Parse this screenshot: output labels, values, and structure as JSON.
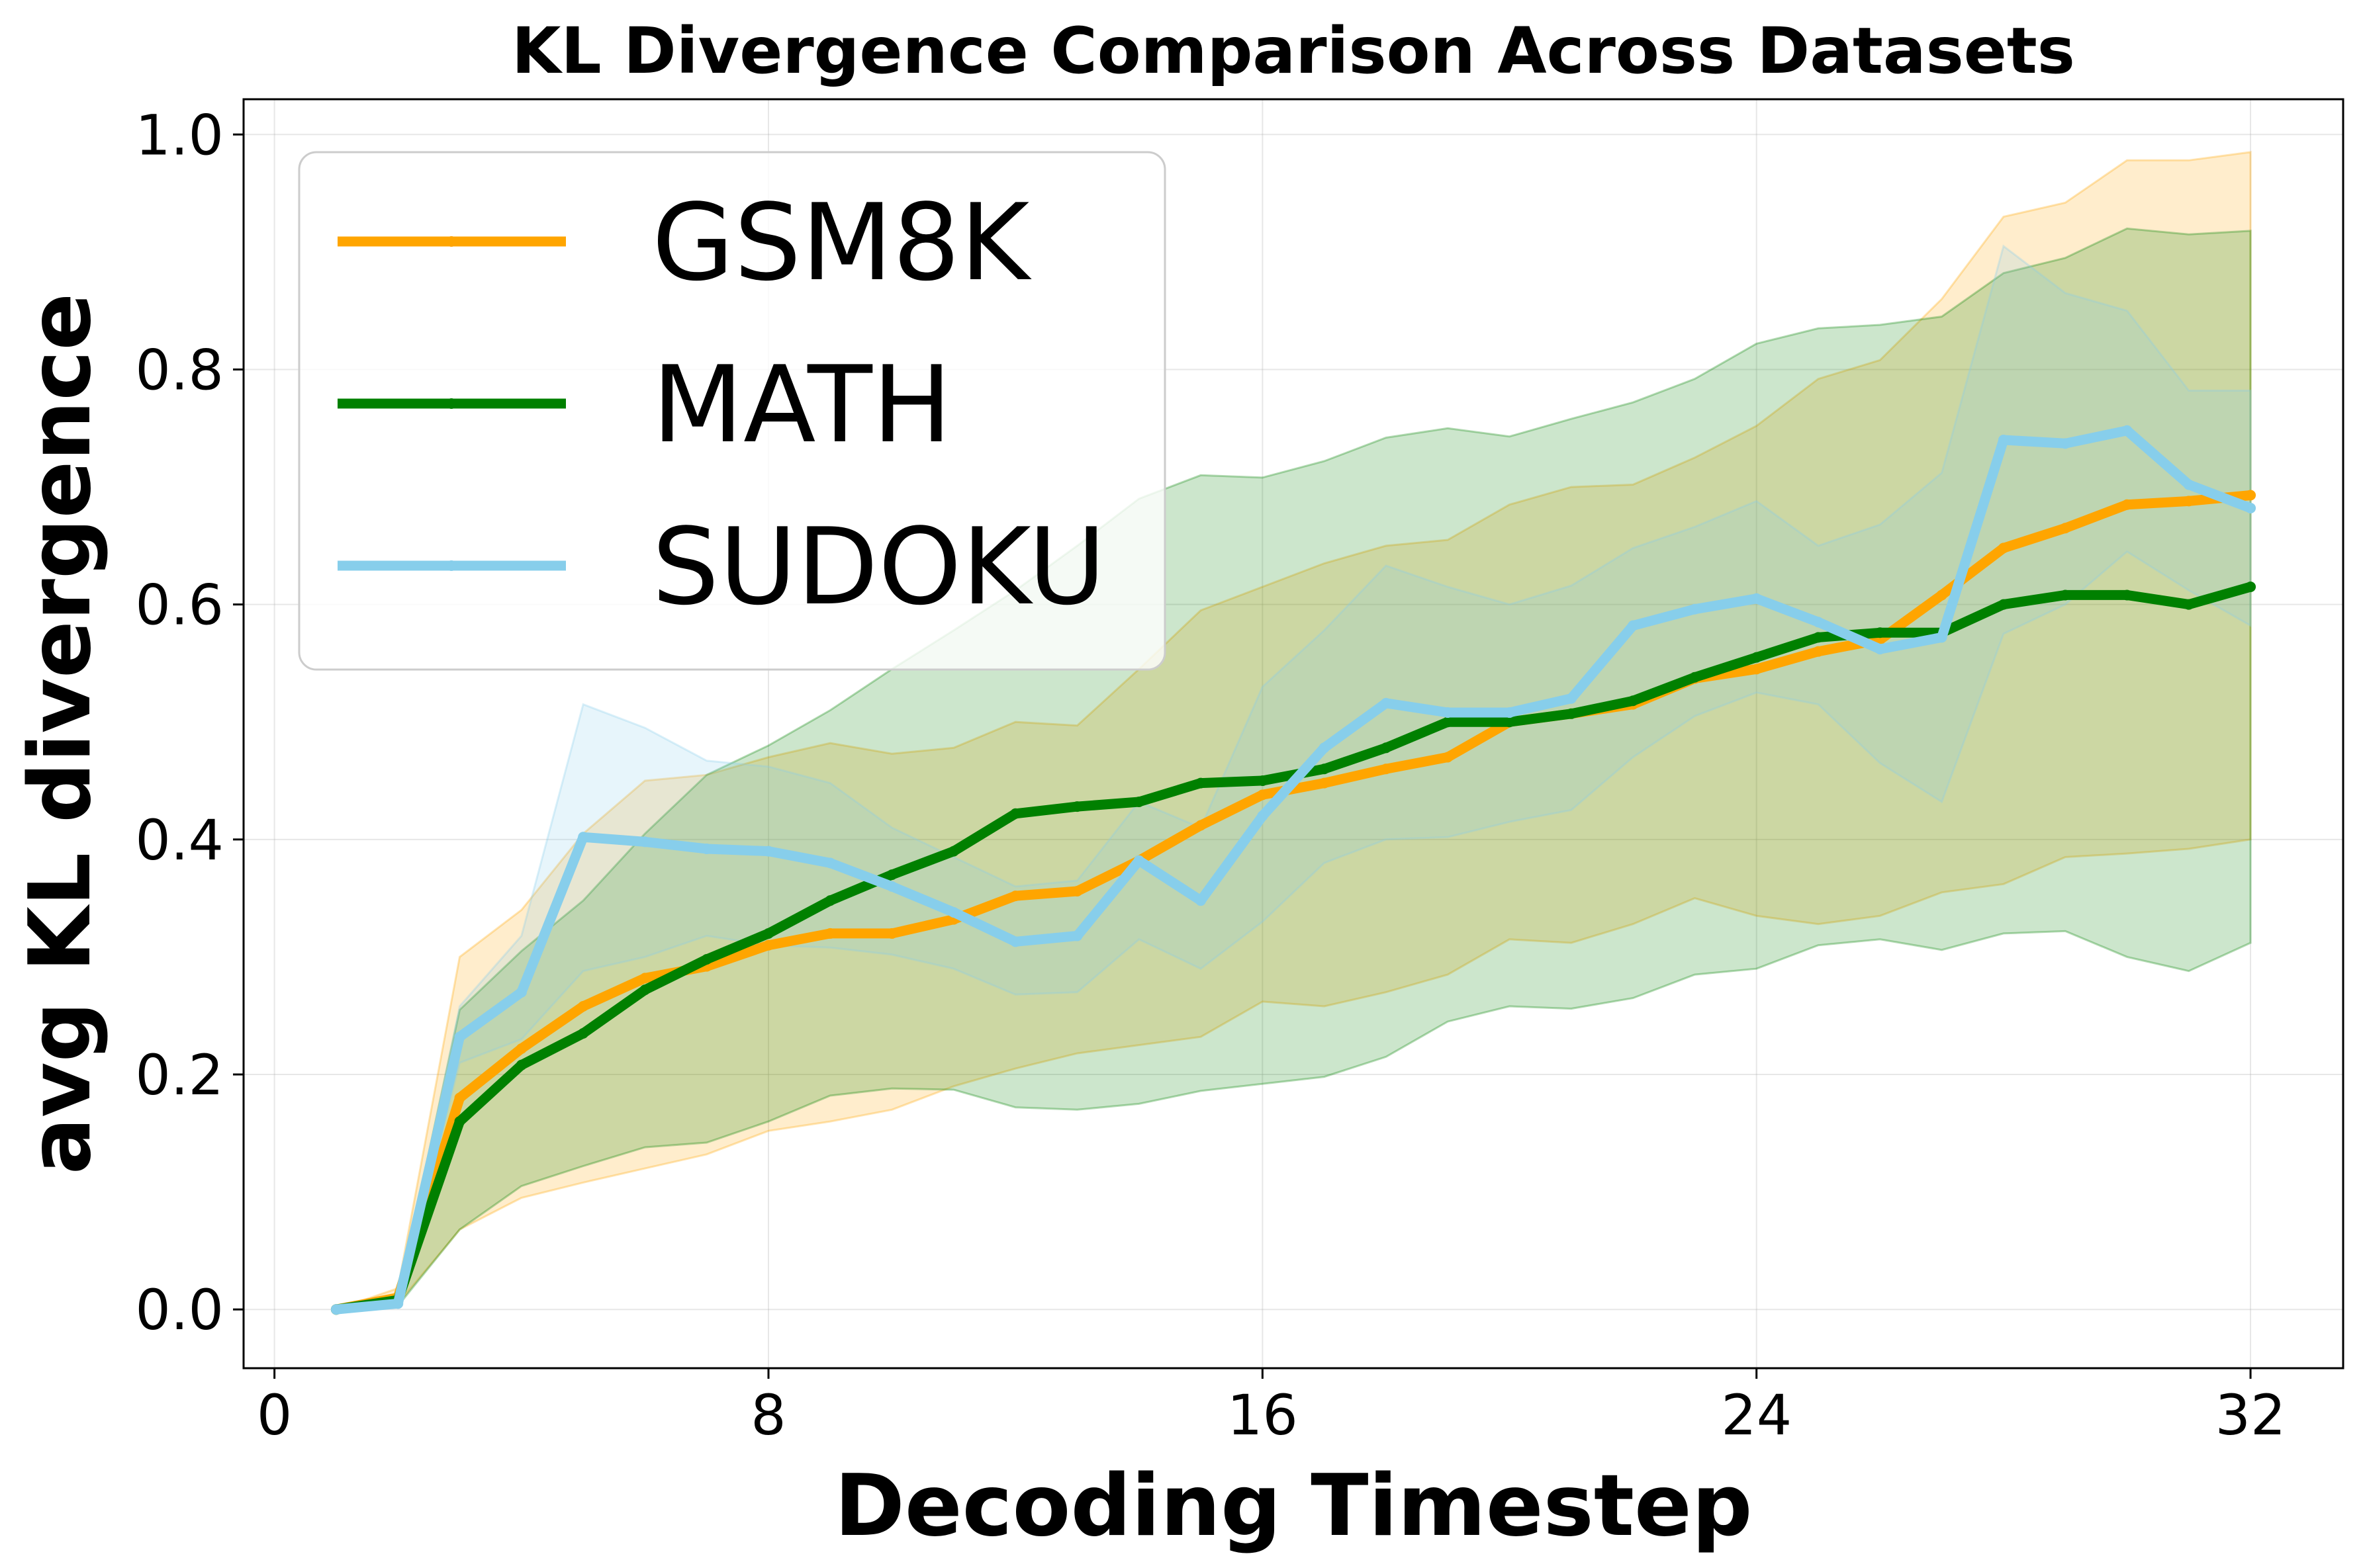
{
  "chart_data": {
    "type": "line",
    "title": "KL Divergence Comparison Across Datasets",
    "xlabel": "Decoding Timestep",
    "ylabel": "avg KL divergence",
    "xlim": [
      -0.5,
      33.5
    ],
    "ylim": [
      -0.05,
      1.03
    ],
    "xticks": [
      0,
      8,
      16,
      24,
      32
    ],
    "xtick_labels": [
      "0",
      "8",
      "16",
      "24",
      "32"
    ],
    "yticks": [
      0.0,
      0.2,
      0.4,
      0.6,
      0.8,
      1.0
    ],
    "ytick_labels": [
      "0.0",
      "0.2",
      "0.4",
      "0.6",
      "0.8",
      "1.0"
    ],
    "grid": true,
    "legend_position": "top-left",
    "x": [
      1,
      2,
      3,
      4,
      5,
      6,
      7,
      8,
      9,
      10,
      11,
      12,
      13,
      14,
      15,
      16,
      17,
      18,
      19,
      20,
      21,
      22,
      23,
      24,
      25,
      26,
      27,
      28,
      29,
      30,
      31,
      32
    ],
    "series": [
      {
        "name": "GSM8K",
        "color": "#FFA500",
        "values": [
          0.0,
          0.01,
          0.18,
          0.222,
          0.258,
          0.282,
          0.292,
          0.31,
          0.32,
          0.32,
          0.332,
          0.352,
          0.356,
          0.382,
          0.412,
          0.438,
          0.448,
          0.46,
          0.47,
          0.5,
          0.507,
          0.515,
          0.537,
          0.545,
          0.56,
          0.57,
          0.608,
          0.648,
          0.665,
          0.685,
          0.688,
          0.693
        ],
        "lower": [
          0.0,
          0.005,
          0.068,
          0.095,
          0.108,
          0.12,
          0.132,
          0.152,
          0.16,
          0.17,
          0.19,
          0.205,
          0.218,
          0.225,
          0.232,
          0.262,
          0.258,
          0.27,
          0.285,
          0.315,
          0.312,
          0.328,
          0.35,
          0.335,
          0.328,
          0.335,
          0.355,
          0.362,
          0.385,
          0.388,
          0.392,
          0.4
        ],
        "upper": [
          0.0,
          0.018,
          0.3,
          0.34,
          0.405,
          0.45,
          0.455,
          0.47,
          0.482,
          0.473,
          0.478,
          0.5,
          0.497,
          0.545,
          0.595,
          0.615,
          0.635,
          0.65,
          0.655,
          0.685,
          0.7,
          0.702,
          0.725,
          0.752,
          0.792,
          0.808,
          0.86,
          0.93,
          0.942,
          0.978,
          0.978,
          0.985
        ]
      },
      {
        "name": "MATH",
        "color": "#008000",
        "values": [
          0.0,
          0.008,
          0.16,
          0.208,
          0.235,
          0.272,
          0.298,
          0.32,
          0.348,
          0.37,
          0.39,
          0.422,
          0.428,
          0.432,
          0.448,
          0.45,
          0.46,
          0.478,
          0.5,
          0.5,
          0.507,
          0.518,
          0.538,
          0.555,
          0.572,
          0.576,
          0.576,
          0.6,
          0.608,
          0.608,
          0.6,
          0.615
        ],
        "lower": [
          0.0,
          0.003,
          0.068,
          0.105,
          0.122,
          0.138,
          0.142,
          0.16,
          0.182,
          0.188,
          0.187,
          0.172,
          0.17,
          0.175,
          0.186,
          0.192,
          0.198,
          0.215,
          0.245,
          0.258,
          0.256,
          0.265,
          0.285,
          0.29,
          0.31,
          0.315,
          0.306,
          0.32,
          0.322,
          0.3,
          0.288,
          0.312
        ],
        "upper": [
          0.0,
          0.012,
          0.255,
          0.305,
          0.348,
          0.405,
          0.455,
          0.48,
          0.51,
          0.545,
          0.578,
          0.612,
          0.65,
          0.69,
          0.71,
          0.708,
          0.722,
          0.742,
          0.75,
          0.743,
          0.758,
          0.772,
          0.792,
          0.822,
          0.835,
          0.838,
          0.845,
          0.882,
          0.895,
          0.92,
          0.915,
          0.918
        ]
      },
      {
        "name": "SUDOKU",
        "color": "#87CEEB",
        "values": [
          0.0,
          0.005,
          0.232,
          0.27,
          0.402,
          0.398,
          0.392,
          0.39,
          0.38,
          0.36,
          0.338,
          0.313,
          0.318,
          0.382,
          0.348,
          0.42,
          0.478,
          0.516,
          0.508,
          0.508,
          0.52,
          0.582,
          0.596,
          0.605,
          0.585,
          0.562,
          0.572,
          0.74,
          0.737,
          0.748,
          0.702,
          0.682
        ],
        "lower": [
          0.0,
          0.003,
          0.21,
          0.23,
          0.288,
          0.3,
          0.318,
          0.31,
          0.308,
          0.302,
          0.29,
          0.268,
          0.27,
          0.315,
          0.29,
          0.33,
          0.38,
          0.4,
          0.402,
          0.415,
          0.425,
          0.47,
          0.505,
          0.525,
          0.515,
          0.465,
          0.432,
          0.575,
          0.6,
          0.645,
          0.612,
          0.582
        ],
        "upper": [
          0.0,
          0.008,
          0.258,
          0.318,
          0.515,
          0.495,
          0.467,
          0.462,
          0.448,
          0.41,
          0.385,
          0.36,
          0.365,
          0.432,
          0.41,
          0.53,
          0.578,
          0.633,
          0.615,
          0.6,
          0.616,
          0.648,
          0.666,
          0.688,
          0.65,
          0.668,
          0.712,
          0.905,
          0.865,
          0.85,
          0.782,
          0.782
        ]
      }
    ]
  }
}
